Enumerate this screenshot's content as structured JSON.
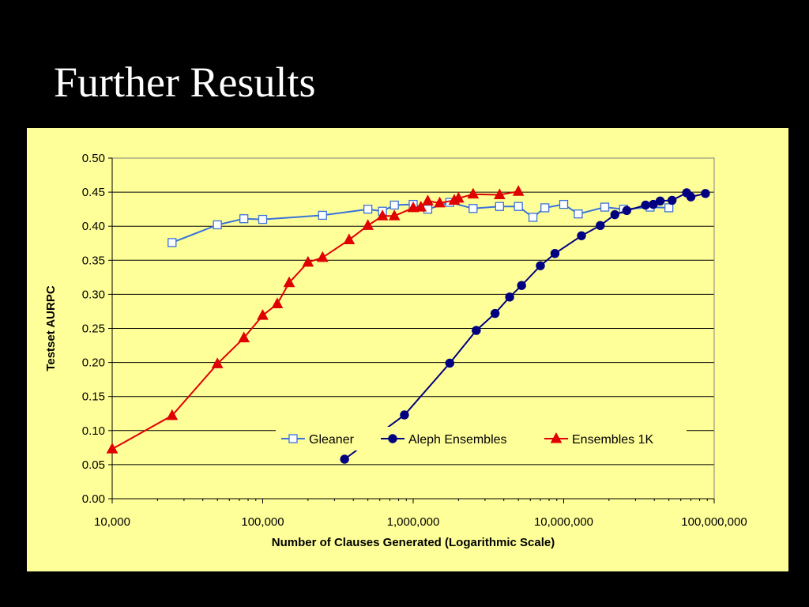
{
  "slide": {
    "title": "Further Results"
  },
  "colors": {
    "background": "#000000",
    "chart_background": "#ffff99",
    "gridline": "#000000",
    "gleaner": "#3a72d8",
    "aleph": "#000080",
    "ensembles_1k": "#e00000"
  },
  "chart_data": {
    "type": "line",
    "title": "",
    "xlabel": "Number of Clauses Generated (Logarithmic Scale)",
    "ylabel": "Testset AURPC",
    "x_scale": "log",
    "xlim": [
      10000,
      100000000
    ],
    "ylim": [
      0,
      0.5
    ],
    "x_ticks": [
      10000,
      100000,
      1000000,
      10000000,
      100000000
    ],
    "x_tick_labels": [
      "10,000",
      "100,000",
      "1,000,000",
      "10,000,000",
      "100,000,000"
    ],
    "y_ticks": [
      0,
      0.05,
      0.1,
      0.15,
      0.2,
      0.25,
      0.3,
      0.35,
      0.4,
      0.45,
      0.5
    ],
    "y_tick_labels": [
      "0.00",
      "0.05",
      "0.10",
      "0.15",
      "0.20",
      "0.25",
      "0.30",
      "0.35",
      "0.40",
      "0.45",
      "0.50"
    ],
    "grid": "horizontal",
    "legend_position": "bottom-right inside plot",
    "series": [
      {
        "name": "Gleaner",
        "marker": "square",
        "color": "#3a72d8",
        "x": [
          25000,
          50000,
          75000,
          100000,
          250000,
          500000,
          625000,
          750000,
          1000000,
          1250000,
          1750000,
          2500000,
          3750000,
          5000000,
          6250000,
          7500000,
          10000000,
          12500000,
          18750000,
          25000000,
          37500000,
          50000000
        ],
        "y": [
          0.376,
          0.402,
          0.411,
          0.41,
          0.416,
          0.425,
          0.422,
          0.431,
          0.432,
          0.425,
          0.435,
          0.426,
          0.429,
          0.429,
          0.413,
          0.427,
          0.432,
          0.418,
          0.428,
          0.425,
          0.428,
          0.427
        ]
      },
      {
        "name": "Aleph Ensembles",
        "marker": "circle",
        "color": "#000080",
        "x": [
          350000,
          875000,
          1750000,
          2625000,
          3500000,
          4375000,
          5250000,
          7000000,
          8750000,
          13125000,
          17500000,
          21875000,
          26250000,
          35000000,
          39375000,
          43750000,
          52500000,
          65625000,
          70000000,
          87500000
        ],
        "y": [
          0.058,
          0.123,
          0.199,
          0.247,
          0.272,
          0.296,
          0.313,
          0.342,
          0.36,
          0.386,
          0.401,
          0.417,
          0.423,
          0.431,
          0.432,
          0.437,
          0.438,
          0.449,
          0.443,
          0.448
        ]
      },
      {
        "name": "Ensembles 1K",
        "marker": "triangle",
        "color": "#e00000",
        "x": [
          10000,
          25000,
          50000,
          75000,
          100000,
          125000,
          150000,
          200000,
          250000,
          375000,
          500000,
          625000,
          750000,
          1000000,
          1125000,
          1250000,
          1500000,
          1875000,
          2000000,
          2500000,
          3750000,
          5000000
        ],
        "y": [
          0.073,
          0.122,
          0.198,
          0.236,
          0.269,
          0.286,
          0.317,
          0.347,
          0.354,
          0.38,
          0.401,
          0.415,
          0.415,
          0.427,
          0.428,
          0.437,
          0.434,
          0.438,
          0.441,
          0.447,
          0.446,
          0.451
        ]
      }
    ]
  }
}
